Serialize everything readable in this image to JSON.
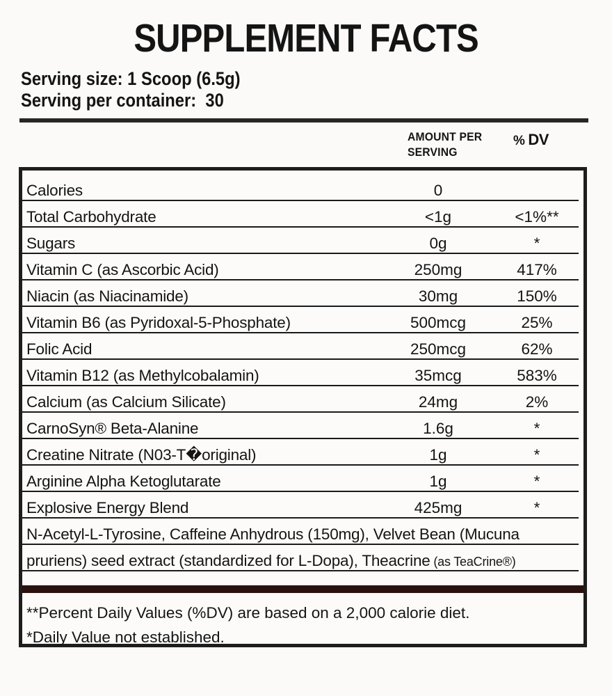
{
  "title": "SUPPLEMENT FACTS",
  "serving": {
    "size_label": "Serving size: 1 Scoop (6.5g)",
    "per_container_label": "Serving per container:  30"
  },
  "table": {
    "headers": {
      "amount_line1": "AMOUNT PER",
      "amount_line2": "SERVING",
      "dv_percent": "%",
      "dv_label": "DV"
    },
    "rows": [
      {
        "name": "Calories",
        "amount": "0",
        "dv": ""
      },
      {
        "name": "Total Carbohydrate",
        "amount": "<1g",
        "dv": "<1%**"
      },
      {
        "name": "Sugars",
        "amount": "0g",
        "dv": "*"
      },
      {
        "name": "Vitamin C (as Ascorbic Acid)",
        "amount": "250mg",
        "dv": "417%"
      },
      {
        "name": "Niacin (as Niacinamide)",
        "amount": "30mg",
        "dv": "150%"
      },
      {
        "name": "Vitamin B6 (as Pyridoxal-5-Phosphate)",
        "amount": "500mcg",
        "dv": "25%"
      },
      {
        "name": "Folic Acid",
        "amount": "250mcg",
        "dv": "62%"
      },
      {
        "name": "Vitamin B12 (as Methylcobalamin)",
        "amount": "35mcg",
        "dv": "583%"
      },
      {
        "name": "Calcium (as Calcium Silicate)",
        "amount": "24mg",
        "dv": "2%"
      },
      {
        "name": "CarnoSyn® Beta-Alanine",
        "amount": "1.6g",
        "dv": "*"
      },
      {
        "name": "Creatine Nitrate (N03-T�original)",
        "amount": "1g",
        "dv": "*"
      },
      {
        "name": "Arginine Alpha Ketoglutarate",
        "amount": "1g",
        "dv": "*"
      },
      {
        "name": "Explosive Energy Blend",
        "amount": "425mg",
        "dv": "*"
      }
    ],
    "blend_line1": "N-Acetyl-L-Tyrosine, Caffeine Anhydrous (150mg), Velvet Bean (Mucuna",
    "blend_line2_main": "pruriens) seed extract (standardized for L-Dopa), Theacrine",
    "blend_line2_small": " (as TeaCrine®)"
  },
  "footnotes": [
    {
      "text": "**Percent Daily Values (%DV) are based on a 2,000 calorie diet."
    },
    {
      "text": "*Daily Value not established."
    }
  ],
  "colors": {
    "background": "#fbfaf9",
    "text": "#141414",
    "border": "#1e1d1d",
    "separator_bar": "#2b110d"
  }
}
